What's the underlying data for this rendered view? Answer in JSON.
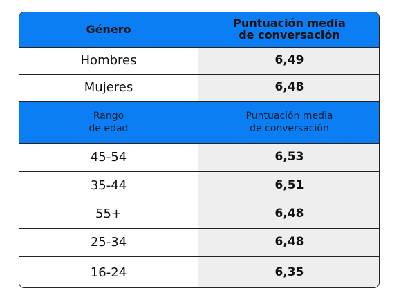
{
  "chart_data": {
    "type": "table",
    "sections": [
      {
        "headers": [
          "Género",
          "Puntuación media\nde conversación"
        ],
        "rows": [
          {
            "label": "Hombres",
            "value": "6,49"
          },
          {
            "label": "Mujeres",
            "value": "6,48"
          }
        ]
      },
      {
        "headers": [
          "Rango\nde edad",
          "Puntuación media\nde conversación"
        ],
        "rows": [
          {
            "label": "45-54",
            "value": "6,53"
          },
          {
            "label": "35-44",
            "value": "6,51"
          },
          {
            "label": "55+",
            "value": "6,48"
          },
          {
            "label": "25-34",
            "value": "6,48"
          },
          {
            "label": "16-24",
            "value": "6,35"
          }
        ]
      }
    ],
    "colors": {
      "header_bg": "#0a7ef2",
      "value_bg": "#eeeeef",
      "label_bg": "#ffffff",
      "border": "#222222"
    }
  }
}
